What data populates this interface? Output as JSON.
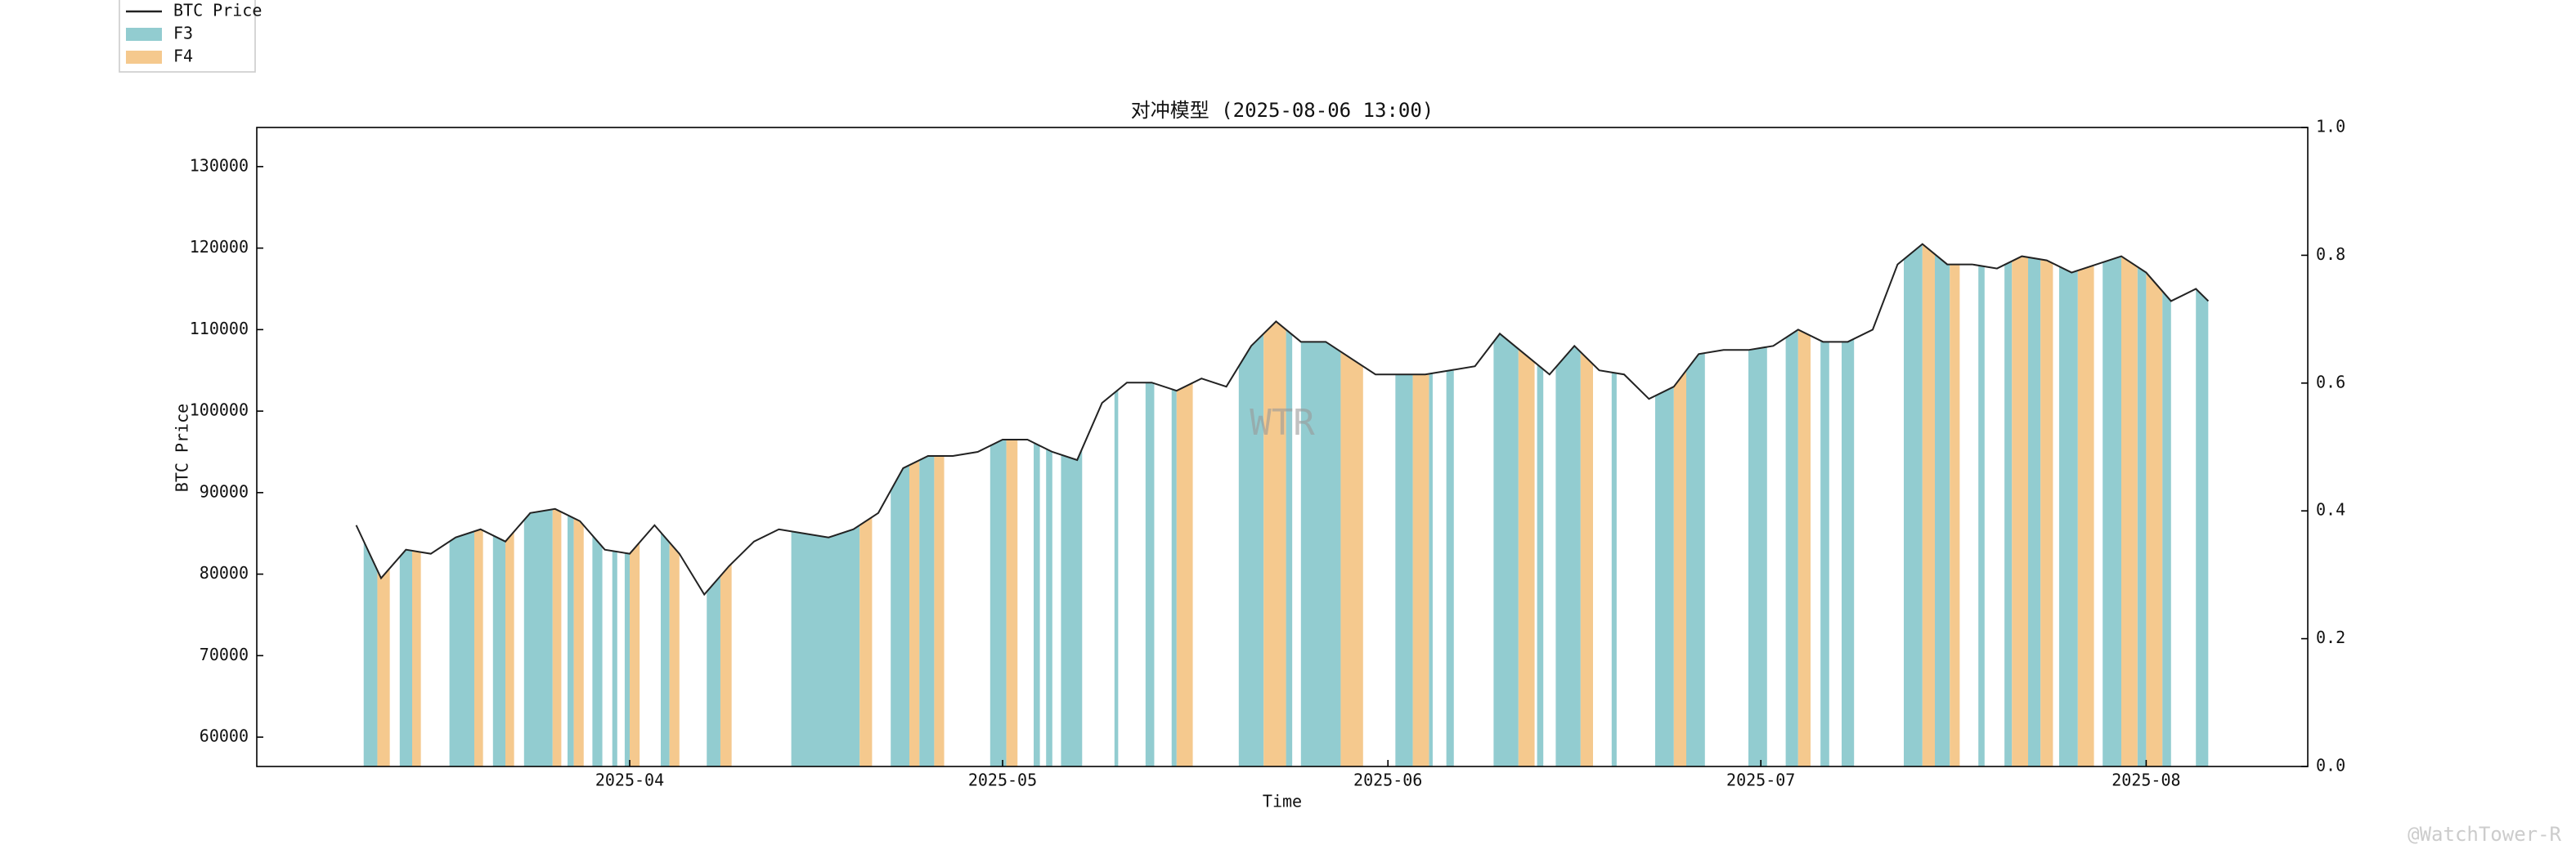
{
  "chart_data": {
    "type": "line",
    "title": "对冲模型 (2025-08-06 13:00)",
    "xlabel": "Time",
    "ylabel": "BTC Price",
    "annotations": [
      "WTR"
    ],
    "watermark": "@WatchTower-R",
    "x": [
      69,
      71,
      73,
      75,
      77,
      79,
      81,
      83,
      85,
      87,
      89,
      91,
      93,
      95,
      97,
      99,
      101,
      103,
      105,
      107,
      109,
      111,
      113,
      115,
      117,
      119,
      121,
      123,
      125,
      127,
      129,
      131,
      133,
      135,
      137,
      139,
      141,
      143,
      145,
      147,
      149,
      151,
      153,
      155,
      157,
      159,
      161,
      163,
      165,
      167,
      169,
      171,
      173,
      175,
      177,
      179,
      181,
      183,
      185,
      187,
      189,
      191,
      193,
      195,
      197,
      199,
      201,
      203,
      205,
      207,
      209,
      211,
      213,
      215,
      217,
      218
    ],
    "series": [
      {
        "name": "BTC Price",
        "color": "#222222",
        "values": [
          86000,
          79500,
          83000,
          82500,
          84500,
          85500,
          84000,
          87500,
          88000,
          86500,
          83000,
          82500,
          86000,
          82500,
          77500,
          81000,
          84000,
          85500,
          85000,
          84500,
          85500,
          87500,
          93000,
          94500,
          94500,
          95000,
          96500,
          96500,
          95000,
          94000,
          101000,
          103500,
          103500,
          102500,
          104000,
          103000,
          108000,
          111000,
          108500,
          108500,
          106500,
          104500,
          104500,
          104500,
          105000,
          105500,
          109500,
          107000,
          104500,
          108000,
          105000,
          104500,
          101500,
          103000,
          107000,
          107500,
          107500,
          108000,
          110000,
          108500,
          108500,
          110000,
          118000,
          120500,
          118000,
          118000,
          117500,
          119000,
          118500,
          117000,
          118000,
          119000,
          117000,
          113500,
          115000,
          113500
        ]
      }
    ],
    "bands": [
      {
        "name": "F3",
        "color": "#92ccd0",
        "intervals": [
          [
            69.6,
            70.7
          ],
          [
            72.5,
            73.5
          ],
          [
            76.5,
            78.5
          ],
          [
            80,
            81
          ],
          [
            82.5,
            84.8
          ],
          [
            86,
            86.5
          ],
          [
            88,
            88.8
          ],
          [
            89.6,
            90
          ],
          [
            90.6,
            91
          ],
          [
            93.5,
            94.2
          ],
          [
            97.2,
            98.3
          ],
          [
            104,
            109.5
          ],
          [
            112,
            113.5
          ],
          [
            114.3,
            115.5
          ],
          [
            120,
            121.3
          ],
          [
            123.5,
            124
          ],
          [
            124.5,
            125
          ],
          [
            125.7,
            127.4
          ],
          [
            130,
            130.3
          ],
          [
            132.5,
            133.2
          ],
          [
            134.6,
            135
          ],
          [
            140,
            142
          ],
          [
            143.8,
            144.3
          ],
          [
            145,
            148.2
          ],
          [
            152.6,
            154
          ],
          [
            155.3,
            155.6
          ],
          [
            156.7,
            157.3
          ],
          [
            160.5,
            162.5
          ],
          [
            164,
            164.5
          ],
          [
            165.5,
            167.5
          ],
          [
            170,
            170.4
          ],
          [
            173.5,
            175
          ],
          [
            176,
            177.5
          ],
          [
            181,
            182.5
          ],
          [
            184,
            185
          ],
          [
            186.8,
            187.5
          ],
          [
            188.5,
            189.5
          ],
          [
            193.5,
            195
          ],
          [
            196,
            197.2
          ],
          [
            199.5,
            200
          ],
          [
            201.6,
            202.2
          ],
          [
            203.5,
            204.5
          ],
          [
            206,
            207.5
          ],
          [
            209.5,
            211
          ],
          [
            212.3,
            213
          ],
          [
            214.3,
            215
          ],
          [
            217,
            218
          ]
        ]
      },
      {
        "name": "F4",
        "color": "#f5c98e",
        "intervals": [
          [
            70.7,
            71.7
          ],
          [
            73.5,
            74.2
          ],
          [
            78.5,
            79.2
          ],
          [
            81,
            81.7
          ],
          [
            84.8,
            85.5
          ],
          [
            86.5,
            87.3
          ],
          [
            91,
            91.8
          ],
          [
            94.2,
            95
          ],
          [
            98.3,
            99.2
          ],
          [
            109.5,
            110.5
          ],
          [
            113.5,
            114.3
          ],
          [
            115.5,
            116.3
          ],
          [
            121.3,
            122.2
          ],
          [
            135,
            136.3
          ],
          [
            142,
            143.8
          ],
          [
            148.2,
            150
          ],
          [
            154,
            155.3
          ],
          [
            162.5,
            163.8
          ],
          [
            167.5,
            168.5
          ],
          [
            175,
            176
          ],
          [
            185,
            186
          ],
          [
            195,
            196
          ],
          [
            197.2,
            198
          ],
          [
            202.2,
            203.5
          ],
          [
            204.5,
            205.5
          ],
          [
            207.5,
            208.8
          ],
          [
            211,
            212.3
          ],
          [
            213,
            214.3
          ]
        ]
      }
    ],
    "xlim": [
      61,
      226
    ],
    "xticks": [
      {
        "value": 91,
        "label": "2025-04"
      },
      {
        "value": 121,
        "label": "2025-05"
      },
      {
        "value": 152,
        "label": "2025-06"
      },
      {
        "value": 182,
        "label": "2025-07"
      },
      {
        "value": 213,
        "label": "2025-08"
      }
    ],
    "ylim": [
      56400,
      134800
    ],
    "yticks": [
      60000,
      70000,
      80000,
      90000,
      100000,
      110000,
      120000,
      130000
    ],
    "y2lim": [
      0,
      1
    ],
    "y2ticks": [
      {
        "value": 0,
        "label": "0.0"
      },
      0.2,
      0.4,
      0.6,
      0.8,
      {
        "value": 1,
        "label": "1.0"
      }
    ]
  }
}
